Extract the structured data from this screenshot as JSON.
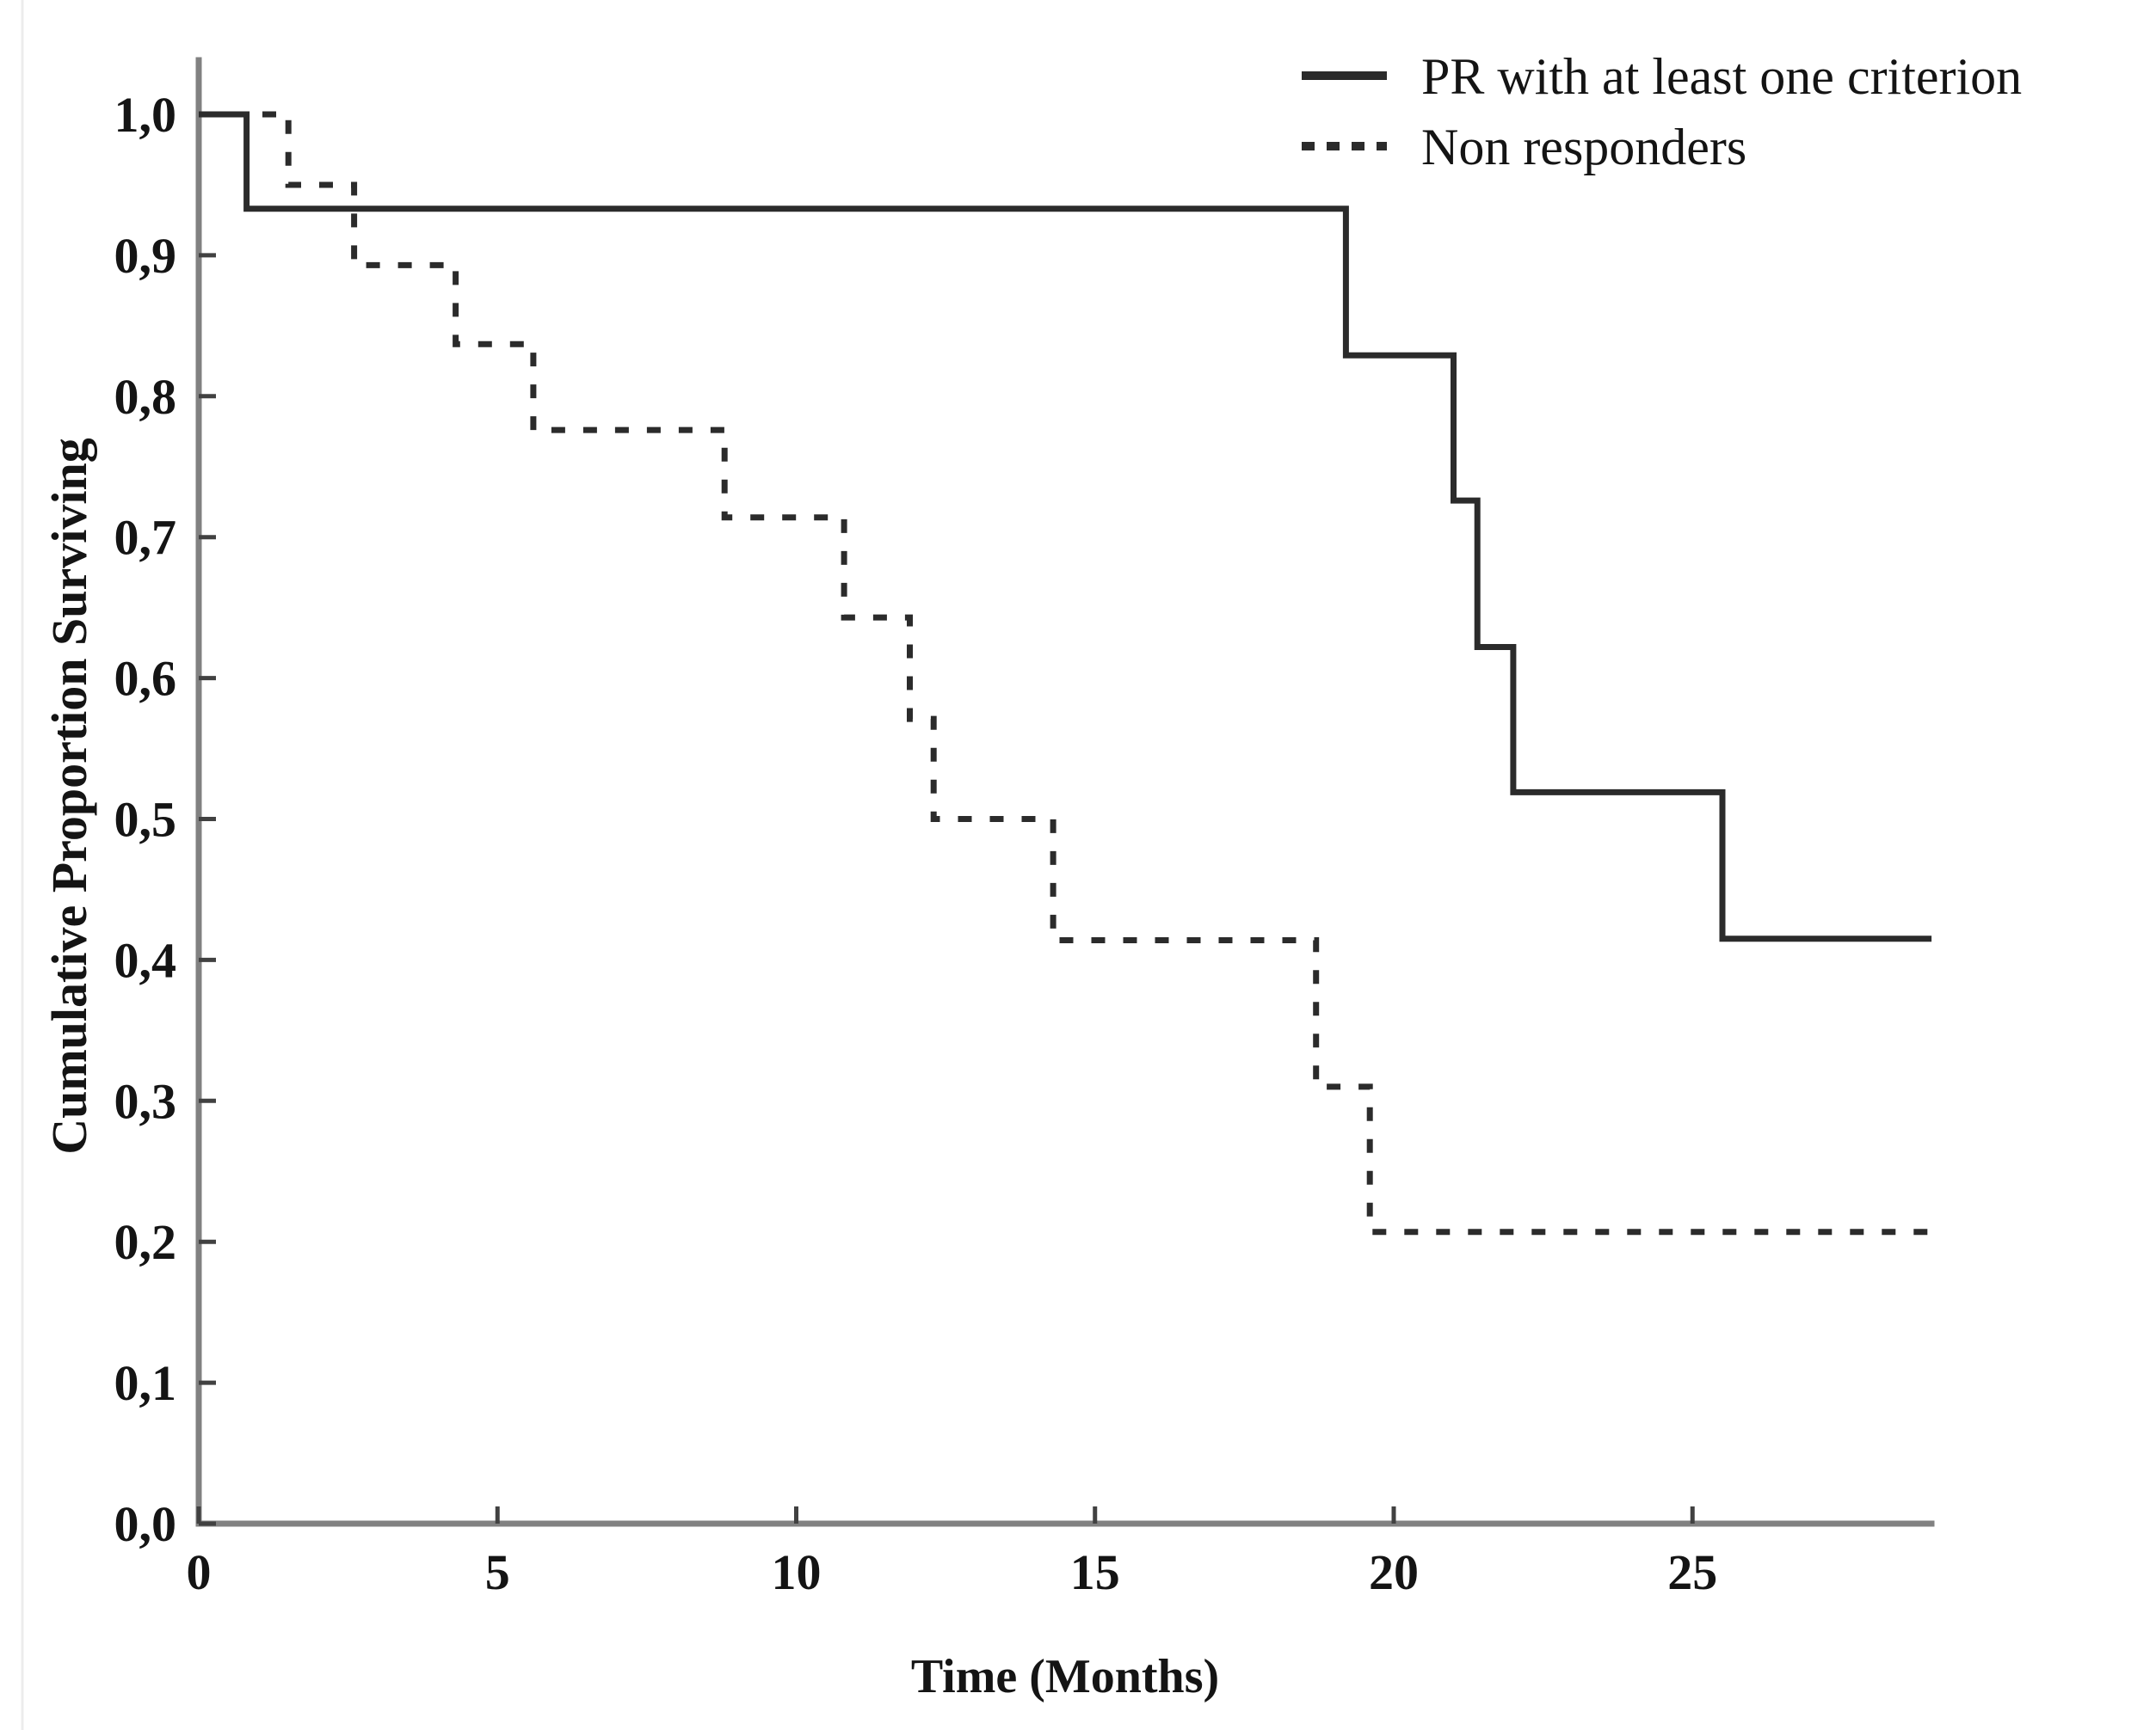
{
  "figure": {
    "background_color": "#ffffff"
  },
  "colors": {
    "curve": "#2b2b2b",
    "axis_line": "#818181",
    "tick_mark": "#414141",
    "text": "#141414",
    "scan_edge_artifact": "#ececec"
  },
  "chart_data": {
    "type": "line",
    "subtype": "kaplan-meier-step",
    "title": "",
    "xlabel": "Time (Months)",
    "ylabel": "Cumulative Proportion Surviving",
    "xlim": [
      0,
      29
    ],
    "ylim": [
      0.0,
      1.0
    ],
    "grid": false,
    "legend_position": "top-right",
    "x_ticks": [
      {
        "value": 0,
        "label": "0"
      },
      {
        "value": 5,
        "label": "5"
      },
      {
        "value": 10,
        "label": "10"
      },
      {
        "value": 15,
        "label": "15"
      },
      {
        "value": 20,
        "label": "20"
      },
      {
        "value": 25,
        "label": "25"
      }
    ],
    "y_ticks": [
      {
        "value": 0.0,
        "label": "0,0"
      },
      {
        "value": 0.1,
        "label": "0,1"
      },
      {
        "value": 0.2,
        "label": "0,2"
      },
      {
        "value": 0.3,
        "label": "0,3"
      },
      {
        "value": 0.4,
        "label": "0,4"
      },
      {
        "value": 0.5,
        "label": "0,5"
      },
      {
        "value": 0.6,
        "label": "0,6"
      },
      {
        "value": 0.7,
        "label": "0,7"
      },
      {
        "value": 0.8,
        "label": "0,8"
      },
      {
        "value": 0.9,
        "label": "0,9"
      },
      {
        "value": 1.0,
        "label": "1,0"
      }
    ],
    "series": [
      {
        "name": "PR with at least one criterion",
        "line_style": "solid",
        "end_time": 29.0,
        "steps": [
          [
            0.0,
            1.0
          ],
          [
            0.8,
            0.933
          ],
          [
            19.2,
            0.829
          ],
          [
            21.0,
            0.726
          ],
          [
            21.4,
            0.622
          ],
          [
            22.0,
            0.519
          ],
          [
            25.5,
            0.415
          ]
        ]
      },
      {
        "name": "Non responders",
        "line_style": "dashed",
        "end_time": 29.0,
        "steps": [
          [
            0.0,
            1.0
          ],
          [
            1.5,
            0.95
          ],
          [
            2.6,
            0.893
          ],
          [
            4.3,
            0.837
          ],
          [
            5.6,
            0.776
          ],
          [
            8.8,
            0.714
          ],
          [
            10.8,
            0.643
          ],
          [
            11.9,
            0.571
          ],
          [
            12.3,
            0.5
          ],
          [
            14.3,
            0.414
          ],
          [
            18.7,
            0.31
          ],
          [
            19.6,
            0.207
          ]
        ]
      }
    ]
  }
}
